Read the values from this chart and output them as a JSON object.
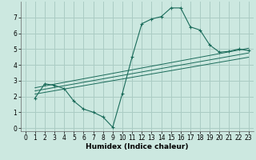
{
  "xlabel": "Humidex (Indice chaleur)",
  "bg_color": "#cce8e0",
  "grid_color": "#aaccc4",
  "line_color": "#1a6b5a",
  "xlim": [
    -0.5,
    23.5
  ],
  "ylim": [
    -0.2,
    8.0
  ],
  "xticks": [
    0,
    1,
    2,
    3,
    4,
    5,
    6,
    7,
    8,
    9,
    10,
    11,
    12,
    13,
    14,
    15,
    16,
    17,
    18,
    19,
    20,
    21,
    22,
    23
  ],
  "yticks": [
    0,
    1,
    2,
    3,
    4,
    5,
    6,
    7
  ],
  "curve1_x": [
    1,
    2,
    3,
    4,
    5,
    6,
    7,
    8,
    9,
    10,
    11,
    12,
    13,
    14,
    15,
    16,
    17,
    18,
    19,
    20,
    21,
    22,
    23
  ],
  "curve1_y": [
    1.9,
    2.8,
    2.7,
    2.5,
    1.7,
    1.2,
    1.0,
    0.7,
    0.05,
    2.2,
    4.5,
    6.6,
    6.9,
    7.05,
    7.6,
    7.6,
    6.4,
    6.2,
    5.25,
    4.8,
    4.85,
    5.0,
    4.9
  ],
  "curve2_x": [
    1,
    23
  ],
  "curve2_y": [
    2.55,
    5.05
  ],
  "curve3_x": [
    1,
    23
  ],
  "curve3_y": [
    2.35,
    4.75
  ],
  "curve4_x": [
    1,
    23
  ],
  "curve4_y": [
    2.15,
    4.48
  ],
  "tick_fontsize": 5.5,
  "xlabel_fontsize": 6.5
}
